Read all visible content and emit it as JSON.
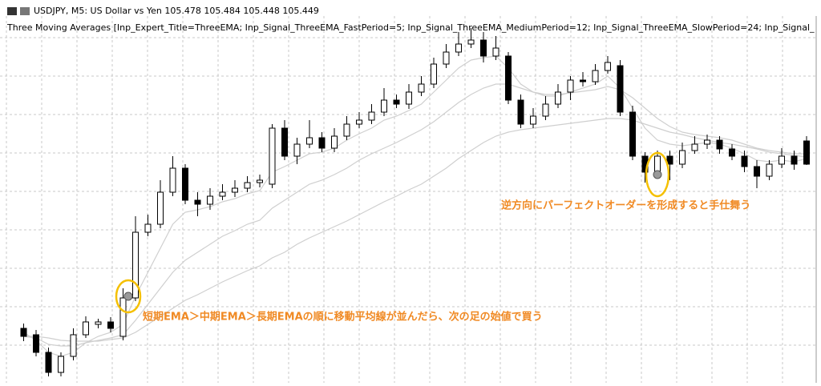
{
  "chart_data": {
    "type": "candlestick",
    "title": "USDJPY, M5:  US Dollar vs Yen  105.478 105.484 105.448 105.449",
    "subtitle": "Three Moving Averages [Inp_Expert_Title=ThreeEMA; Inp_Signal_ThreeEMA_FastPeriod=5; Inp_Signal_ThreeEMA_MediumPeriod=12; Inp_Signal_ThreeEMA_SlowPeriod=24; Inp_Signal_",
    "annotations": [
      "短期EMA＞中期EMA＞長期EMAの順に移動平均線が並んだら、次の足の始値で買う",
      "逆方向にパーフェクトオーダーを形成すると手仕舞う"
    ],
    "ylim": [
      105.179,
      105.634
    ],
    "up_color": "#ffffff",
    "down_color": "#000000",
    "ma_color": "#cfcfcf",
    "open": [
      105.244,
      105.236,
      105.214,
      105.189,
      105.209,
      105.236,
      105.249,
      105.252,
      105.234,
      105.282,
      105.364,
      105.374,
      105.414,
      105.444,
      105.404,
      105.399,
      105.409,
      105.414,
      105.419,
      105.426,
      105.424,
      105.494,
      105.459,
      105.474,
      105.482,
      105.469,
      105.484,
      105.499,
      105.504,
      105.514,
      105.529,
      105.524,
      105.539,
      105.549,
      105.574,
      105.589,
      105.599,
      105.604,
      105.584,
      105.584,
      105.529,
      105.499,
      105.509,
      105.524,
      105.539,
      105.554,
      105.552,
      105.566,
      105.572,
      105.514,
      105.459,
      105.439,
      105.459,
      105.449,
      105.466,
      105.474,
      105.479,
      105.468,
      105.459,
      105.446,
      105.434,
      105.449,
      105.459,
      105.478
    ],
    "high": [
      105.25,
      105.242,
      105.22,
      105.214,
      105.244,
      105.259,
      105.256,
      105.258,
      105.294,
      105.384,
      105.386,
      105.429,
      105.459,
      105.449,
      105.414,
      105.419,
      105.424,
      105.429,
      105.434,
      105.436,
      105.499,
      105.504,
      105.482,
      105.504,
      105.489,
      105.494,
      105.509,
      105.514,
      105.524,
      105.544,
      105.536,
      105.549,
      105.559,
      105.582,
      105.599,
      105.614,
      105.619,
      105.614,
      105.609,
      105.589,
      105.536,
      105.519,
      105.534,
      105.549,
      105.559,
      105.564,
      105.574,
      105.584,
      105.579,
      105.522,
      105.464,
      105.466,
      105.466,
      105.476,
      105.484,
      105.486,
      105.484,
      105.474,
      105.466,
      105.454,
      105.454,
      105.469,
      105.466,
      105.484
    ],
    "low": [
      105.228,
      105.209,
      105.184,
      105.184,
      105.204,
      105.232,
      105.244,
      105.239,
      105.229,
      105.278,
      105.359,
      105.369,
      105.409,
      105.399,
      105.384,
      105.392,
      105.404,
      105.408,
      105.414,
      105.42,
      105.419,
      105.454,
      105.449,
      105.469,
      105.464,
      105.464,
      105.479,
      105.494,
      105.499,
      105.509,
      105.519,
      105.518,
      105.534,
      105.544,
      105.569,
      105.584,
      105.594,
      105.576,
      105.579,
      105.524,
      105.494,
      105.494,
      105.504,
      105.519,
      105.529,
      105.546,
      105.548,
      105.562,
      105.509,
      105.454,
      105.426,
      105.434,
      105.429,
      105.444,
      105.462,
      105.468,
      105.462,
      105.454,
      105.439,
      105.419,
      105.429,
      105.444,
      105.442,
      105.448
    ],
    "close": [
      105.234,
      105.214,
      105.189,
      105.209,
      105.236,
      105.252,
      105.252,
      105.244,
      105.282,
      105.364,
      105.374,
      105.414,
      105.444,
      105.404,
      105.399,
      105.409,
      105.414,
      105.419,
      105.426,
      105.429,
      105.494,
      105.459,
      105.474,
      105.482,
      105.469,
      105.484,
      105.499,
      105.504,
      105.514,
      105.529,
      105.524,
      105.539,
      105.549,
      105.574,
      105.589,
      105.599,
      105.604,
      105.584,
      105.594,
      105.529,
      105.499,
      105.509,
      105.524,
      105.539,
      105.554,
      105.552,
      105.566,
      105.576,
      105.514,
      105.459,
      105.439,
      105.459,
      105.449,
      105.466,
      105.474,
      105.479,
      105.468,
      105.459,
      105.446,
      105.434,
      105.449,
      105.459,
      105.449,
      105.449
    ],
    "moving_averages": [
      {
        "values": [
          105.239,
          105.229,
          105.214,
          105.209,
          105.214,
          105.226,
          105.234,
          105.239,
          105.249,
          105.284,
          105.314,
          105.344,
          105.374,
          105.389,
          105.392,
          105.396,
          105.402,
          105.406,
          105.412,
          105.416,
          105.439,
          105.446,
          105.454,
          105.462,
          105.464,
          105.469,
          105.479,
          105.487,
          105.494,
          105.504,
          105.509,
          105.516,
          105.524,
          105.539,
          105.554,
          105.569,
          105.579,
          105.582,
          105.584,
          105.569,
          105.549,
          105.539,
          105.534,
          105.534,
          105.539,
          105.544,
          105.549,
          105.559,
          105.544,
          105.519,
          105.494,
          105.479,
          105.474,
          105.472,
          105.474,
          105.476,
          105.474,
          105.469,
          105.462,
          105.454,
          105.452,
          105.454,
          105.452,
          105.456
        ]
      },
      {
        "values": [
          105.234,
          105.232,
          105.224,
          105.222,
          105.222,
          105.226,
          105.229,
          105.232,
          105.236,
          105.254,
          105.274,
          105.294,
          105.314,
          105.329,
          105.339,
          105.349,
          105.359,
          105.366,
          105.374,
          105.379,
          105.394,
          105.404,
          105.414,
          105.424,
          105.429,
          105.436,
          105.444,
          105.454,
          105.462,
          105.469,
          105.476,
          105.484,
          105.492,
          105.502,
          105.514,
          105.526,
          105.536,
          105.544,
          105.549,
          105.549,
          105.544,
          105.539,
          105.536,
          105.536,
          105.538,
          105.54,
          105.542,
          105.546,
          105.542,
          105.532,
          105.519,
          105.506,
          105.496,
          105.489,
          105.486,
          105.484,
          105.482,
          105.479,
          105.474,
          105.469,
          105.466,
          105.464,
          105.462,
          105.462
        ]
      },
      {
        "values": [
          105.234,
          105.234,
          105.232,
          105.229,
          105.228,
          105.228,
          105.228,
          105.23,
          105.232,
          105.239,
          105.249,
          105.259,
          105.269,
          105.279,
          105.286,
          105.294,
          105.302,
          105.309,
          105.316,
          105.322,
          105.332,
          105.339,
          105.349,
          105.357,
          105.364,
          105.371,
          105.378,
          105.386,
          105.394,
          105.402,
          105.409,
          105.417,
          105.424,
          105.434,
          105.444,
          105.456,
          105.466,
          105.476,
          105.484,
          105.489,
          105.492,
          105.494,
          105.496,
          105.498,
          105.5,
          105.502,
          105.504,
          105.506,
          105.506,
          105.504,
          105.499,
          105.494,
          105.489,
          105.486,
          105.482,
          105.479,
          105.476,
          105.474,
          105.471,
          105.468,
          105.464,
          105.462,
          105.46,
          105.458
        ]
      }
    ]
  }
}
